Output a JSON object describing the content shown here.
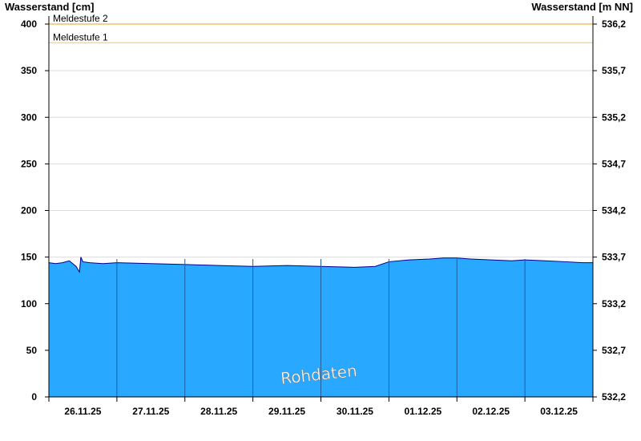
{
  "chart_data": {
    "type": "area",
    "ylabel_left": "Wasserstand [cm]",
    "ylabel_right": "Wasserstand [m NN]",
    "ylim": [
      0,
      400
    ],
    "y_ticks": [
      0,
      50,
      100,
      150,
      200,
      250,
      300,
      350,
      400
    ],
    "y_ticks_right": [
      "532,2",
      "532,7",
      "533,2",
      "533,7",
      "534,2",
      "534,7",
      "535,2",
      "535,7",
      "536,2"
    ],
    "x_labels": [
      "26.11.25",
      "27.11.25",
      "28.11.25",
      "29.11.25",
      "30.11.25",
      "01.12.25",
      "02.12.25",
      "03.12.25"
    ],
    "grid": true,
    "thresholds": [
      {
        "label": "Meldestufe 2",
        "value": 400,
        "color": "#e8a317"
      },
      {
        "label": "Meldestufe 1",
        "value": 380,
        "color": "#f2cf3c"
      }
    ],
    "series": [
      {
        "fill_color": "#29a8ff",
        "line_color": "#00008b",
        "x_day": [
          0,
          0.1,
          0.2,
          0.3,
          0.4,
          0.45,
          0.47,
          0.5,
          0.6,
          0.8,
          1.0,
          1.5,
          2.0,
          2.5,
          3.0,
          3.5,
          4.0,
          4.5,
          4.8,
          5.0,
          5.3,
          5.6,
          5.8,
          6.0,
          6.2,
          6.5,
          6.8,
          7.0,
          7.3,
          7.6,
          7.85,
          8.0
        ],
        "values": [
          144,
          143,
          144,
          146,
          140,
          134,
          150,
          145,
          144,
          143,
          144,
          143,
          142,
          141,
          140,
          141,
          140,
          139,
          140,
          145,
          147,
          148,
          149,
          149,
          148,
          147,
          146,
          147,
          146,
          145,
          144,
          144
        ]
      }
    ],
    "watermark": "Rohdaten"
  }
}
